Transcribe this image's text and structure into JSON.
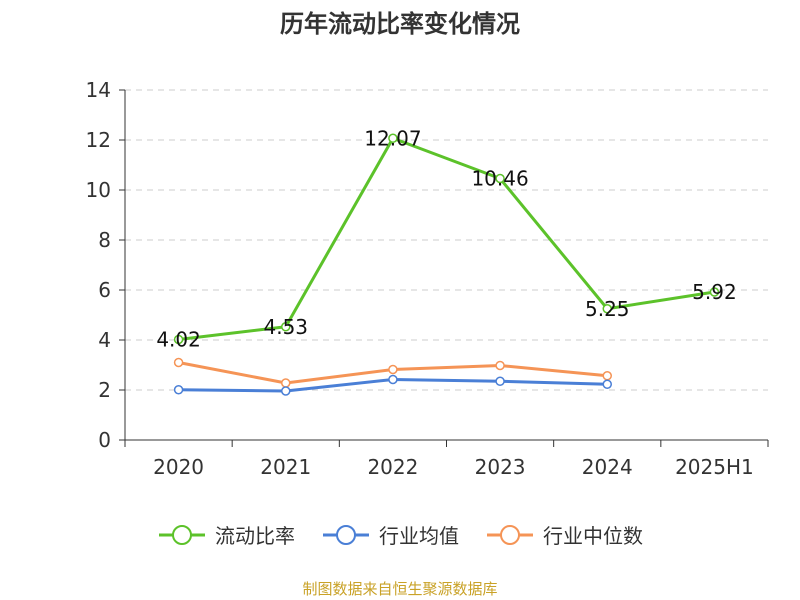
{
  "title": "历年流动比率变化情况",
  "footer": "制图数据来自恒生聚源数据库",
  "chart_data": {
    "type": "line",
    "categories": [
      "2020",
      "2021",
      "2022",
      "2023",
      "2024",
      "2025H1"
    ],
    "ylim": [
      0,
      14
    ],
    "yticks": [
      0,
      2,
      4,
      6,
      8,
      10,
      12,
      14
    ],
    "grid": true,
    "legend_position": "bottom",
    "series": [
      {
        "name": "流动比率",
        "color": "#5cc22a",
        "values": [
          4.02,
          4.53,
          12.07,
          10.46,
          5.25,
          5.92
        ],
        "labels": [
          "4.02",
          "4.53",
          "12.07",
          "10.46",
          "5.25",
          "5.92"
        ]
      },
      {
        "name": "行业均值",
        "color": "#4a7fd6",
        "values": [
          2.01,
          1.96,
          2.42,
          2.35,
          2.23,
          null
        ]
      },
      {
        "name": "行业中位数",
        "color": "#f59456",
        "values": [
          3.1,
          2.28,
          2.82,
          2.98,
          2.57,
          null
        ]
      }
    ]
  }
}
